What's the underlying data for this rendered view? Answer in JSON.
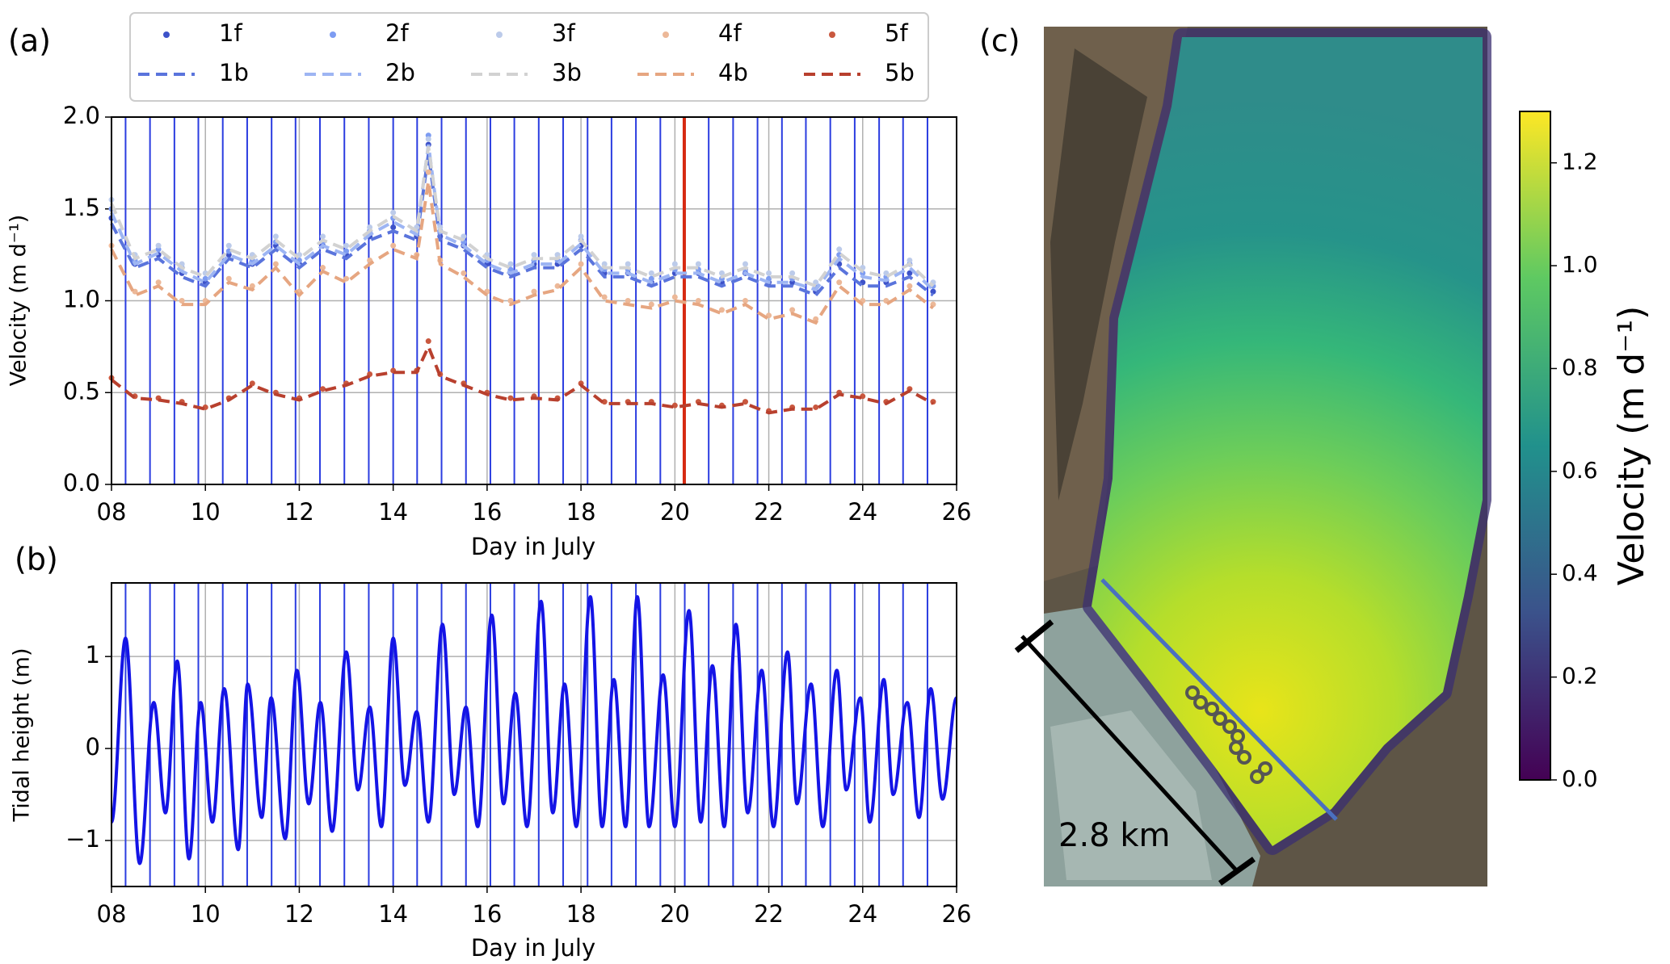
{
  "chart_data": [
    {
      "type": "timeseries",
      "panel": "(a)",
      "xlabel": "Day in July",
      "ylabel": "Velocity (m d⁻¹)",
      "xlim": [
        8,
        26
      ],
      "ylim": [
        0,
        2
      ],
      "xticks": [
        {
          "value": 8,
          "label": "08"
        },
        10,
        12,
        14,
        16,
        18,
        20,
        22,
        24,
        26
      ],
      "yticks": [
        {
          "value": 0,
          "label": "0.0"
        },
        0.5,
        {
          "value": 1,
          "label": "1.0"
        },
        1.5,
        {
          "value": 2,
          "label": "2.0"
        }
      ],
      "grid": true,
      "vline_color": "#2b3de0",
      "highlight_color": "#d62a12",
      "highlight_x": 20.2,
      "vlines": [
        8.3,
        8.82,
        9.34,
        9.85,
        10.37,
        10.89,
        11.41,
        11.92,
        12.44,
        12.96,
        13.48,
        14.0,
        14.51,
        15.03,
        15.55,
        16.07,
        16.58,
        17.1,
        17.62,
        18.14,
        18.65,
        19.17,
        19.69,
        20.21,
        20.72,
        21.24,
        21.76,
        22.28,
        22.79,
        23.31,
        23.83,
        24.35,
        24.86,
        25.38
      ],
      "x": [
        8,
        8.5,
        9,
        9.5,
        10,
        10.5,
        11,
        11.5,
        12,
        12.5,
        13,
        13.5,
        14,
        14.5,
        14.75,
        15,
        15.5,
        16,
        16.5,
        17,
        17.5,
        18,
        18.5,
        19,
        19.5,
        20,
        20.5,
        21,
        21.5,
        22,
        22.5,
        23,
        23.5,
        24,
        24.5,
        25,
        25.5
      ],
      "series": [
        {
          "name": "1f",
          "style": "dots",
          "color": "#3d52c9",
          "values": [
            1.45,
            1.2,
            1.25,
            1.15,
            1.1,
            1.25,
            1.2,
            1.3,
            1.2,
            1.3,
            1.25,
            1.35,
            1.4,
            1.35,
            1.85,
            1.35,
            1.3,
            1.2,
            1.15,
            1.2,
            1.2,
            1.3,
            1.15,
            1.15,
            1.1,
            1.15,
            1.15,
            1.1,
            1.15,
            1.1,
            1.1,
            1.05,
            1.2,
            1.1,
            1.1,
            1.15,
            1.05
          ]
        },
        {
          "name": "1b",
          "style": "dashed",
          "color": "#5a74dc",
          "values": [
            1.42,
            1.18,
            1.23,
            1.13,
            1.08,
            1.23,
            1.18,
            1.28,
            1.18,
            1.28,
            1.23,
            1.33,
            1.38,
            1.33,
            1.8,
            1.33,
            1.28,
            1.18,
            1.13,
            1.18,
            1.18,
            1.28,
            1.13,
            1.13,
            1.08,
            1.13,
            1.13,
            1.08,
            1.13,
            1.08,
            1.08,
            1.03,
            1.18,
            1.08,
            1.08,
            1.13,
            1.03
          ]
        },
        {
          "name": "2f",
          "style": "dots",
          "color": "#7d9cf2",
          "values": [
            1.5,
            1.22,
            1.28,
            1.18,
            1.12,
            1.27,
            1.22,
            1.32,
            1.22,
            1.32,
            1.27,
            1.38,
            1.45,
            1.38,
            1.9,
            1.38,
            1.32,
            1.22,
            1.17,
            1.22,
            1.22,
            1.33,
            1.17,
            1.17,
            1.12,
            1.17,
            1.17,
            1.12,
            1.17,
            1.12,
            1.12,
            1.08,
            1.25,
            1.15,
            1.13,
            1.2,
            1.08
          ]
        },
        {
          "name": "2b",
          "style": "dashed",
          "color": "#9db5f3",
          "values": [
            1.48,
            1.2,
            1.26,
            1.16,
            1.1,
            1.25,
            1.2,
            1.3,
            1.2,
            1.3,
            1.25,
            1.36,
            1.43,
            1.36,
            1.85,
            1.36,
            1.3,
            1.2,
            1.15,
            1.2,
            1.2,
            1.31,
            1.15,
            1.15,
            1.1,
            1.15,
            1.15,
            1.1,
            1.15,
            1.1,
            1.1,
            1.06,
            1.23,
            1.13,
            1.11,
            1.18,
            1.06
          ]
        },
        {
          "name": "3f",
          "style": "dots",
          "color": "#bccbea",
          "values": [
            1.55,
            1.25,
            1.3,
            1.2,
            1.15,
            1.3,
            1.25,
            1.35,
            1.25,
            1.35,
            1.3,
            1.4,
            1.48,
            1.4,
            1.88,
            1.4,
            1.35,
            1.25,
            1.2,
            1.25,
            1.25,
            1.35,
            1.2,
            1.2,
            1.15,
            1.2,
            1.2,
            1.15,
            1.2,
            1.15,
            1.15,
            1.1,
            1.28,
            1.18,
            1.15,
            1.22,
            1.1
          ]
        },
        {
          "name": "3b",
          "style": "dashed",
          "color": "#d2d2d2",
          "values": [
            1.53,
            1.23,
            1.28,
            1.18,
            1.13,
            1.28,
            1.23,
            1.33,
            1.23,
            1.33,
            1.28,
            1.38,
            1.46,
            1.38,
            1.84,
            1.38,
            1.33,
            1.23,
            1.18,
            1.23,
            1.23,
            1.33,
            1.18,
            1.18,
            1.13,
            1.18,
            1.18,
            1.13,
            1.18,
            1.13,
            1.13,
            1.08,
            1.26,
            1.16,
            1.13,
            1.2,
            1.08
          ]
        },
        {
          "name": "4f",
          "style": "dots",
          "color": "#ecb898",
          "values": [
            1.3,
            1.05,
            1.1,
            1.0,
            1.0,
            1.12,
            1.08,
            1.2,
            1.05,
            1.18,
            1.12,
            1.22,
            1.3,
            1.25,
            1.7,
            1.22,
            1.15,
            1.05,
            1.0,
            1.05,
            1.08,
            1.2,
            1.02,
            1.0,
            0.98,
            1.02,
            1.0,
            0.95,
            1.0,
            0.92,
            0.95,
            0.9,
            1.1,
            1.0,
            1.0,
            1.08,
            0.98
          ]
        },
        {
          "name": "4b",
          "style": "dashed",
          "color": "#e6a681",
          "values": [
            1.28,
            1.03,
            1.08,
            0.98,
            0.98,
            1.1,
            1.06,
            1.18,
            1.03,
            1.16,
            1.1,
            1.2,
            1.28,
            1.23,
            1.65,
            1.2,
            1.13,
            1.03,
            0.98,
            1.03,
            1.06,
            1.18,
            1.0,
            0.98,
            0.96,
            1.0,
            0.98,
            0.93,
            0.98,
            0.9,
            0.93,
            0.88,
            1.08,
            0.98,
            0.98,
            1.06,
            0.96
          ]
        },
        {
          "name": "5f",
          "style": "dots",
          "color": "#c9583f",
          "values": [
            0.58,
            0.48,
            0.47,
            0.45,
            0.42,
            0.47,
            0.55,
            0.5,
            0.47,
            0.52,
            0.55,
            0.6,
            0.62,
            0.62,
            0.78,
            0.6,
            0.55,
            0.5,
            0.47,
            0.48,
            0.47,
            0.55,
            0.45,
            0.45,
            0.45,
            0.43,
            0.45,
            0.43,
            0.45,
            0.4,
            0.42,
            0.42,
            0.5,
            0.48,
            0.45,
            0.52,
            0.45
          ]
        },
        {
          "name": "5b",
          "style": "dashed",
          "color": "#b8402e",
          "values": [
            0.57,
            0.47,
            0.46,
            0.44,
            0.41,
            0.46,
            0.54,
            0.49,
            0.46,
            0.51,
            0.54,
            0.59,
            0.61,
            0.61,
            0.75,
            0.59,
            0.54,
            0.49,
            0.46,
            0.47,
            0.46,
            0.54,
            0.44,
            0.44,
            0.44,
            0.42,
            0.44,
            0.42,
            0.44,
            0.39,
            0.41,
            0.41,
            0.49,
            0.47,
            0.44,
            0.51,
            0.44
          ]
        }
      ]
    },
    {
      "type": "line",
      "panel": "(b)",
      "xlabel": "Day in July",
      "ylabel": "Tidal height (m)",
      "xlim": [
        8,
        26
      ],
      "ylim": [
        -1.5,
        1.8
      ],
      "xticks": [
        {
          "value": 8,
          "label": "08"
        },
        10,
        12,
        14,
        16,
        18,
        20,
        22,
        24,
        26
      ],
      "yticks": [
        {
          "value": -1,
          "label": "−1"
        },
        0,
        1
      ],
      "grid": true,
      "vline_color": "#2b3de0",
      "color": "#1414e6",
      "vlines": [
        8.3,
        8.82,
        9.34,
        9.85,
        10.37,
        10.89,
        11.41,
        11.92,
        12.44,
        12.96,
        13.48,
        14.0,
        14.51,
        15.03,
        15.55,
        16.07,
        16.58,
        17.1,
        17.62,
        18.14,
        18.65,
        19.17,
        19.69,
        20.21,
        20.72,
        21.24,
        21.76,
        22.28,
        22.79,
        23.31,
        23.83,
        24.35,
        24.86,
        25.38
      ],
      "x": [
        8.0,
        8.3,
        8.6,
        8.9,
        9.15,
        9.4,
        9.65,
        9.9,
        10.15,
        10.4,
        10.7,
        10.9,
        11.2,
        11.4,
        11.7,
        11.95,
        12.2,
        12.45,
        12.7,
        13.0,
        13.25,
        13.5,
        13.75,
        14.0,
        14.25,
        14.5,
        14.75,
        15.05,
        15.3,
        15.55,
        15.8,
        16.1,
        16.35,
        16.6,
        16.85,
        17.15,
        17.4,
        17.65,
        17.9,
        18.2,
        18.45,
        18.7,
        18.95,
        19.2,
        19.45,
        19.75,
        20.0,
        20.3,
        20.55,
        20.8,
        21.05,
        21.3,
        21.55,
        21.85,
        22.1,
        22.4,
        22.6,
        22.9,
        23.15,
        23.45,
        23.65,
        23.95,
        24.15,
        24.45,
        24.65,
        24.95,
        25.2,
        25.45,
        25.7,
        26.0
      ],
      "values": [
        -0.8,
        1.2,
        -1.25,
        0.5,
        -0.7,
        0.95,
        -1.2,
        0.5,
        -0.8,
        0.65,
        -1.1,
        0.7,
        -0.75,
        0.55,
        -0.98,
        0.85,
        -0.6,
        0.5,
        -0.9,
        1.05,
        -0.45,
        0.45,
        -0.85,
        1.2,
        -0.4,
        0.4,
        -0.8,
        1.35,
        -0.5,
        0.45,
        -0.85,
        1.45,
        -0.6,
        0.6,
        -0.85,
        1.6,
        -0.7,
        0.7,
        -0.85,
        1.65,
        -0.85,
        0.75,
        -0.85,
        1.65,
        -0.85,
        0.8,
        -0.85,
        1.5,
        -0.8,
        0.9,
        -0.85,
        1.35,
        -0.7,
        0.85,
        -0.85,
        1.05,
        -0.6,
        0.7,
        -0.85,
        0.85,
        -0.45,
        0.55,
        -0.8,
        0.75,
        -0.5,
        0.5,
        -0.75,
        0.65,
        -0.55,
        0.55
      ]
    },
    {
      "type": "map",
      "panel": "(c)",
      "colorbar_label": "Velocity (m d⁻¹)",
      "scale_label": "2.8 km",
      "clim": [
        0,
        1.3
      ],
      "cticks": [
        {
          "value": 0,
          "label": "0.0"
        },
        0.2,
        0.4,
        0.6,
        0.8,
        {
          "value": 1,
          "label": "1.0"
        },
        1.2
      ],
      "colormap": [
        "#440154",
        "#3b528b",
        "#21918c",
        "#5ec962",
        "#fde725"
      ]
    }
  ]
}
